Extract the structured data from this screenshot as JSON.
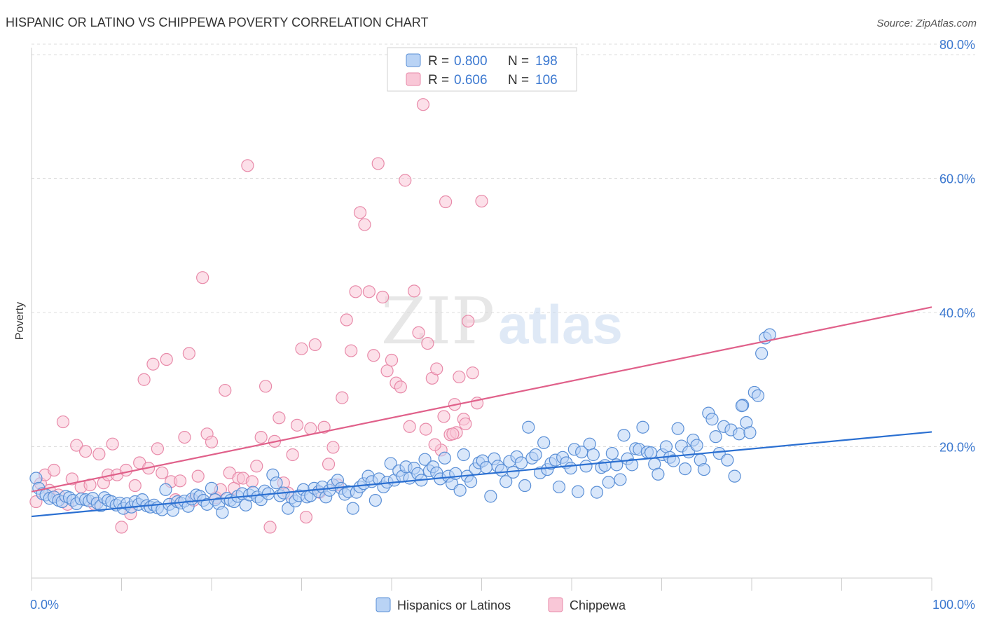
{
  "header": {
    "title": "HISPANIC OR LATINO VS CHIPPEWA POVERTY CORRELATION CHART",
    "source": "Source: ZipAtlas.com"
  },
  "watermark": {
    "zip": "ZIP",
    "atlas": "atlas"
  },
  "colors": {
    "blue_fill": "#b9d3f5",
    "blue_stroke": "#5a8fd6",
    "blue_line": "#2a6fd1",
    "pink_fill": "#f9c7d7",
    "pink_stroke": "#e88aa9",
    "pink_line": "#e0608a",
    "axis_text_blue": "#3b78d0",
    "grid": "#dcdcdc"
  },
  "legend": {
    "rows": [
      {
        "r_label": "R = ",
        "r_value": "0.800",
        "n_label": "N = ",
        "n_value": "198"
      },
      {
        "r_label": "R = ",
        "r_value": "0.606",
        "n_label": "N = ",
        "n_value": "106"
      }
    ]
  },
  "bottom_legend": {
    "blue": "Hispanics or Latinos",
    "pink": "Chippewa"
  },
  "chart_data": {
    "type": "scatter",
    "title": "HISPANIC OR LATINO VS CHIPPEWA POVERTY CORRELATION CHART",
    "xlabel": "",
    "ylabel": "Poverty",
    "xlim": [
      0,
      100
    ],
    "ylim": [
      0,
      82
    ],
    "x_tick_labels": [
      "0.0%",
      "100.0%"
    ],
    "y_ticks": [
      20,
      40,
      60,
      80
    ],
    "y_tick_labels": [
      "20.0%",
      "40.0%",
      "60.0%",
      "80.0%"
    ],
    "grid": true,
    "legend_position": "top-center",
    "series": [
      {
        "name": "Hispanics or Latinos",
        "r": 0.8,
        "n": 198,
        "trend": {
          "x": [
            0,
            100
          ],
          "y": [
            9.6,
            22.2
          ]
        },
        "points": [
          [
            0.5,
            15.3
          ],
          [
            0.8,
            13.8
          ],
          [
            1.2,
            13.0
          ],
          [
            1.6,
            12.8
          ],
          [
            2.0,
            12.3
          ],
          [
            2.5,
            12.5
          ],
          [
            3.0,
            12.0
          ],
          [
            3.4,
            11.8
          ],
          [
            3.8,
            12.6
          ],
          [
            4.2,
            12.4
          ],
          [
            4.6,
            12.0
          ],
          [
            5.0,
            11.5
          ],
          [
            5.5,
            12.2
          ],
          [
            6.0,
            12.1
          ],
          [
            6.4,
            11.9
          ],
          [
            6.8,
            12.3
          ],
          [
            7.3,
            11.6
          ],
          [
            7.7,
            11.2
          ],
          [
            8.1,
            12.4
          ],
          [
            8.5,
            12.0
          ],
          [
            8.9,
            11.8
          ],
          [
            9.4,
            11.3
          ],
          [
            9.8,
            11.6
          ],
          [
            10.2,
            10.8
          ],
          [
            10.6,
            11.5
          ],
          [
            11.1,
            11.0
          ],
          [
            11.5,
            11.8
          ],
          [
            11.9,
            11.4
          ],
          [
            12.3,
            12.1
          ],
          [
            12.8,
            11.2
          ],
          [
            13.2,
            11.0
          ],
          [
            13.6,
            11.3
          ],
          [
            14.0,
            10.9
          ],
          [
            14.5,
            10.6
          ],
          [
            14.9,
            13.6
          ],
          [
            15.3,
            11.4
          ],
          [
            15.7,
            10.5
          ],
          [
            16.2,
            11.8
          ],
          [
            16.6,
            11.6
          ],
          [
            17.0,
            11.9
          ],
          [
            17.4,
            11.1
          ],
          [
            17.8,
            12.2
          ],
          [
            18.3,
            12.8
          ],
          [
            18.7,
            12.6
          ],
          [
            19.1,
            12.0
          ],
          [
            19.5,
            11.4
          ],
          [
            20.0,
            13.8
          ],
          [
            20.4,
            12.1
          ],
          [
            20.8,
            11.5
          ],
          [
            21.2,
            10.2
          ],
          [
            21.7,
            12.3
          ],
          [
            22.1,
            12.0
          ],
          [
            22.5,
            11.8
          ],
          [
            22.9,
            12.6
          ],
          [
            23.4,
            13.0
          ],
          [
            23.8,
            11.3
          ],
          [
            24.2,
            12.8
          ],
          [
            24.6,
            13.2
          ],
          [
            25.1,
            12.5
          ],
          [
            25.5,
            12.1
          ],
          [
            25.9,
            13.4
          ],
          [
            26.3,
            13.0
          ],
          [
            26.8,
            15.8
          ],
          [
            27.2,
            14.6
          ],
          [
            27.6,
            12.7
          ],
          [
            28.0,
            13.1
          ],
          [
            28.5,
            10.8
          ],
          [
            28.9,
            12.4
          ],
          [
            29.3,
            11.9
          ],
          [
            29.7,
            12.7
          ],
          [
            30.2,
            13.6
          ],
          [
            30.6,
            12.5
          ],
          [
            31.0,
            12.7
          ],
          [
            31.4,
            13.8
          ],
          [
            31.9,
            13.3
          ],
          [
            32.3,
            14.0
          ],
          [
            32.7,
            12.5
          ],
          [
            33.1,
            13.5
          ],
          [
            33.5,
            14.3
          ],
          [
            34.0,
            15.0
          ],
          [
            34.4,
            13.8
          ],
          [
            34.8,
            12.9
          ],
          [
            35.2,
            13.3
          ],
          [
            35.7,
            10.8
          ],
          [
            36.1,
            13.2
          ],
          [
            36.5,
            14.0
          ],
          [
            36.9,
            14.5
          ],
          [
            37.4,
            15.6
          ],
          [
            37.8,
            14.8
          ],
          [
            38.2,
            12.0
          ],
          [
            38.6,
            15.2
          ],
          [
            39.1,
            14.0
          ],
          [
            39.5,
            14.7
          ],
          [
            39.9,
            17.5
          ],
          [
            40.3,
            15.0
          ],
          [
            40.8,
            16.4
          ],
          [
            41.2,
            15.6
          ],
          [
            41.6,
            17.0
          ],
          [
            42.0,
            15.3
          ],
          [
            42.5,
            16.8
          ],
          [
            42.9,
            16.0
          ],
          [
            43.3,
            15.0
          ],
          [
            43.7,
            18.1
          ],
          [
            44.2,
            16.4
          ],
          [
            44.6,
            17.0
          ],
          [
            45.0,
            16.1
          ],
          [
            45.4,
            15.2
          ],
          [
            45.9,
            18.3
          ],
          [
            46.3,
            15.6
          ],
          [
            46.7,
            14.5
          ],
          [
            47.1,
            16.0
          ],
          [
            47.6,
            13.5
          ],
          [
            48.0,
            18.8
          ],
          [
            48.4,
            15.6
          ],
          [
            48.8,
            14.8
          ],
          [
            49.3,
            16.7
          ],
          [
            49.7,
            17.6
          ],
          [
            50.1,
            17.9
          ],
          [
            50.5,
            16.9
          ],
          [
            51.0,
            12.6
          ],
          [
            51.4,
            18.2
          ],
          [
            51.8,
            17.1
          ],
          [
            52.2,
            16.5
          ],
          [
            52.7,
            14.8
          ],
          [
            53.1,
            17.8
          ],
          [
            53.5,
            16.2
          ],
          [
            53.9,
            18.5
          ],
          [
            54.4,
            17.6
          ],
          [
            54.8,
            14.2
          ],
          [
            55.2,
            22.9
          ],
          [
            55.6,
            18.3
          ],
          [
            56.0,
            18.8
          ],
          [
            56.5,
            16.1
          ],
          [
            56.9,
            20.6
          ],
          [
            57.3,
            16.6
          ],
          [
            57.7,
            17.5
          ],
          [
            58.2,
            18.0
          ],
          [
            58.6,
            14.0
          ],
          [
            59.0,
            18.4
          ],
          [
            59.4,
            17.6
          ],
          [
            59.9,
            16.8
          ],
          [
            60.3,
            19.6
          ],
          [
            60.7,
            13.3
          ],
          [
            61.1,
            19.2
          ],
          [
            61.6,
            17.1
          ],
          [
            62.0,
            20.4
          ],
          [
            62.4,
            18.8
          ],
          [
            62.8,
            13.2
          ],
          [
            63.3,
            16.9
          ],
          [
            63.7,
            17.2
          ],
          [
            64.1,
            14.7
          ],
          [
            64.5,
            19.0
          ],
          [
            65.0,
            17.3
          ],
          [
            65.4,
            15.1
          ],
          [
            65.8,
            21.7
          ],
          [
            66.2,
            18.2
          ],
          [
            66.7,
            17.3
          ],
          [
            67.1,
            19.7
          ],
          [
            67.5,
            19.6
          ],
          [
            67.9,
            22.9
          ],
          [
            68.4,
            19.2
          ],
          [
            68.8,
            19.1
          ],
          [
            69.2,
            17.4
          ],
          [
            69.6,
            15.9
          ],
          [
            70.1,
            18.8
          ],
          [
            70.5,
            20.0
          ],
          [
            70.9,
            18.4
          ],
          [
            71.3,
            17.9
          ],
          [
            71.8,
            22.7
          ],
          [
            72.2,
            20.1
          ],
          [
            72.6,
            16.7
          ],
          [
            73.0,
            19.2
          ],
          [
            73.5,
            21.0
          ],
          [
            73.9,
            20.2
          ],
          [
            74.3,
            18.0
          ],
          [
            74.7,
            16.6
          ],
          [
            75.2,
            25.0
          ],
          [
            75.6,
            24.1
          ],
          [
            76.0,
            21.5
          ],
          [
            76.4,
            19.0
          ],
          [
            76.9,
            23.0
          ],
          [
            77.3,
            18.0
          ],
          [
            77.7,
            22.5
          ],
          [
            78.1,
            15.6
          ],
          [
            78.6,
            21.9
          ],
          [
            79.0,
            26.2
          ],
          [
            79.4,
            23.6
          ],
          [
            79.8,
            22.1
          ],
          [
            80.3,
            28.1
          ],
          [
            80.7,
            27.6
          ],
          [
            81.1,
            33.9
          ],
          [
            81.5,
            36.2
          ],
          [
            82.0,
            36.7
          ],
          [
            78.9,
            26.1
          ]
        ]
      },
      {
        "name": "Chippewa",
        "r": 0.606,
        "n": 106,
        "trend": {
          "x": [
            0,
            100
          ],
          "y": [
            13.3,
            40.8
          ]
        },
        "points": [
          [
            0.5,
            11.8
          ],
          [
            1.0,
            14.5
          ],
          [
            1.5,
            15.8
          ],
          [
            2.0,
            13.5
          ],
          [
            2.5,
            16.5
          ],
          [
            3.0,
            12.8
          ],
          [
            3.5,
            23.7
          ],
          [
            4.0,
            11.4
          ],
          [
            4.5,
            15.2
          ],
          [
            5.0,
            20.2
          ],
          [
            5.5,
            14.0
          ],
          [
            6.0,
            19.3
          ],
          [
            6.5,
            14.3
          ],
          [
            7.0,
            11.4
          ],
          [
            7.5,
            18.9
          ],
          [
            8.0,
            14.6
          ],
          [
            8.5,
            15.8
          ],
          [
            9.0,
            20.4
          ],
          [
            9.5,
            15.8
          ],
          [
            10.0,
            8.0
          ],
          [
            10.5,
            16.5
          ],
          [
            11.0,
            10.0
          ],
          [
            11.5,
            14.2
          ],
          [
            12.0,
            17.6
          ],
          [
            12.5,
            30.0
          ],
          [
            13.0,
            16.8
          ],
          [
            13.5,
            32.3
          ],
          [
            14.0,
            19.7
          ],
          [
            14.5,
            16.1
          ],
          [
            15.0,
            33.0
          ],
          [
            15.5,
            14.8
          ],
          [
            16.0,
            12.1
          ],
          [
            16.5,
            14.9
          ],
          [
            17.0,
            21.4
          ],
          [
            17.5,
            33.9
          ],
          [
            18.0,
            12.0
          ],
          [
            18.5,
            15.6
          ],
          [
            19.0,
            45.2
          ],
          [
            19.5,
            21.9
          ],
          [
            20.0,
            20.7
          ],
          [
            20.5,
            12.4
          ],
          [
            21.0,
            13.6
          ],
          [
            21.5,
            28.4
          ],
          [
            22.0,
            16.1
          ],
          [
            22.5,
            13.8
          ],
          [
            23.0,
            15.3
          ],
          [
            23.5,
            15.3
          ],
          [
            24.0,
            61.9
          ],
          [
            24.5,
            14.8
          ],
          [
            25.0,
            17.1
          ],
          [
            25.5,
            21.4
          ],
          [
            26.0,
            29.0
          ],
          [
            26.5,
            8.0
          ],
          [
            27.0,
            20.8
          ],
          [
            27.5,
            24.3
          ],
          [
            28.0,
            14.6
          ],
          [
            28.5,
            13.1
          ],
          [
            29.0,
            18.8
          ],
          [
            29.5,
            23.2
          ],
          [
            30.0,
            34.6
          ],
          [
            30.5,
            9.5
          ],
          [
            31.0,
            22.7
          ],
          [
            31.5,
            35.2
          ],
          [
            32.0,
            13.2
          ],
          [
            32.5,
            22.9
          ],
          [
            33.0,
            17.4
          ],
          [
            33.5,
            19.9
          ],
          [
            34.0,
            14.3
          ],
          [
            34.5,
            27.3
          ],
          [
            35.0,
            38.9
          ],
          [
            35.5,
            34.3
          ],
          [
            36.0,
            43.1
          ],
          [
            36.5,
            54.9
          ],
          [
            37.0,
            53.1
          ],
          [
            37.5,
            43.1
          ],
          [
            38.0,
            33.6
          ],
          [
            38.5,
            62.2
          ],
          [
            39.0,
            42.3
          ],
          [
            39.5,
            31.3
          ],
          [
            40.0,
            32.9
          ],
          [
            40.5,
            29.5
          ],
          [
            41.0,
            28.9
          ],
          [
            41.5,
            59.7
          ],
          [
            42.0,
            23.0
          ],
          [
            42.5,
            43.2
          ],
          [
            43.0,
            37.0
          ],
          [
            43.5,
            71.0
          ],
          [
            44.0,
            35.4
          ],
          [
            44.5,
            30.2
          ],
          [
            45.0,
            31.6
          ],
          [
            45.5,
            19.5
          ],
          [
            46.0,
            56.5
          ],
          [
            46.5,
            21.8
          ],
          [
            47.0,
            26.3
          ],
          [
            47.5,
            30.4
          ],
          [
            48.0,
            24.1
          ],
          [
            48.5,
            38.7
          ],
          [
            49.0,
            31.0
          ],
          [
            49.5,
            26.5
          ],
          [
            50.0,
            56.6
          ],
          [
            47.2,
            22.1
          ],
          [
            48.2,
            23.4
          ],
          [
            45.8,
            24.5
          ],
          [
            46.8,
            21.9
          ],
          [
            44.8,
            20.3
          ],
          [
            43.8,
            22.6
          ]
        ]
      }
    ]
  }
}
